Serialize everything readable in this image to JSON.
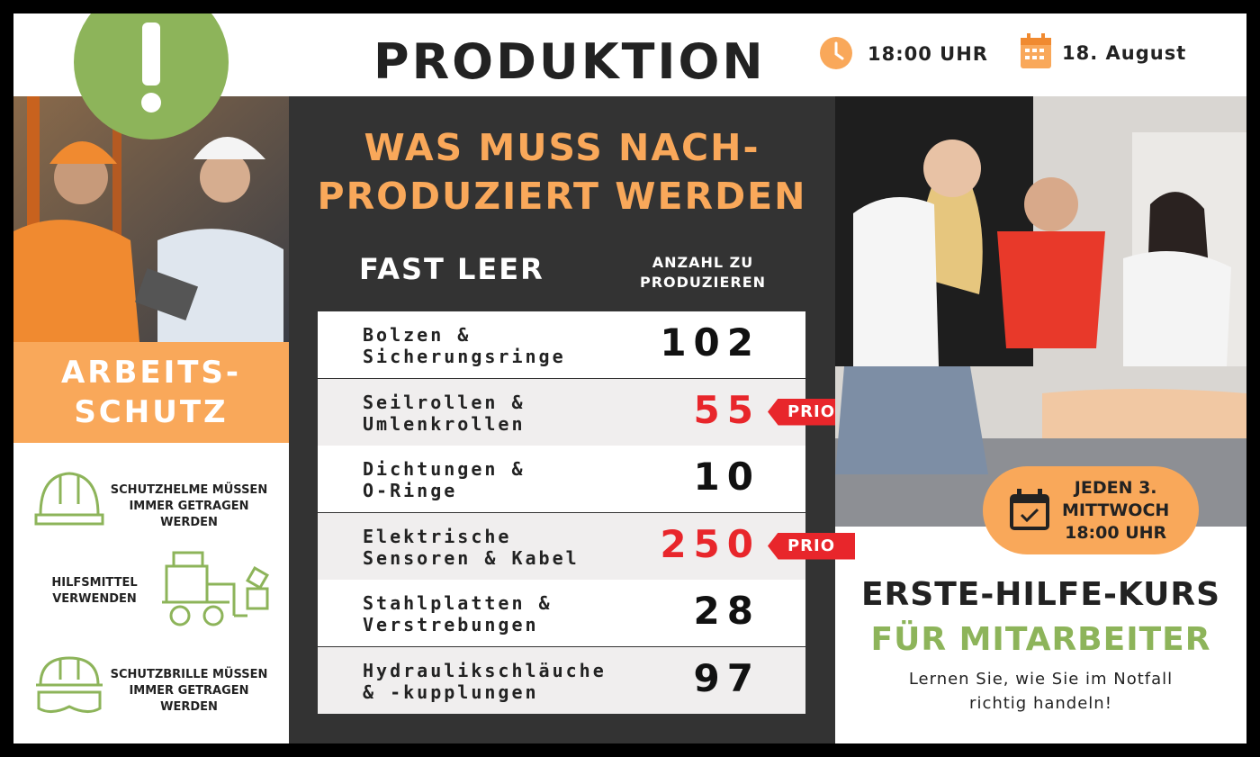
{
  "header": {
    "title": "PRODUKTION",
    "time": "18:00 UHR",
    "date": "18. August"
  },
  "safety": {
    "title_lines": [
      "ARBEITS-",
      "SCHUTZ"
    ],
    "items": [
      {
        "lines": [
          "SCHUTZHELME MÜSSEN",
          "IMMER GETRAGEN",
          "WERDEN"
        ]
      },
      {
        "lines": [
          "HILFSMITTEL",
          "VERWENDEN"
        ]
      },
      {
        "lines": [
          "SCHUTZBRILLE MÜSSEN",
          "IMMER GETRAGEN",
          "WERDEN"
        ]
      }
    ]
  },
  "production": {
    "heading_lines": [
      "WAS MUSS NACH-",
      "PRODUZIERT WERDEN"
    ],
    "col_name": "FAST LEER",
    "col_count_lines": [
      "ANZAHL ZU",
      "PRODUZIEREN"
    ],
    "rows": [
      {
        "lines": [
          "Bolzen &",
          "Sicherungsringe"
        ],
        "count": 102
      },
      {
        "lines": [
          "Seilrollen &",
          "Umlenkrollen"
        ],
        "count": 55,
        "badge": "PRIO"
      },
      {
        "lines": [
          "Dichtungen &",
          "O-Ringe"
        ],
        "count": 10
      },
      {
        "lines": [
          "Elektrische",
          "Sensoren & Kabel"
        ],
        "count": 250,
        "badge": "PRIO"
      },
      {
        "lines": [
          "Stahlplatten &",
          "Verstrebungen"
        ],
        "count": 28
      },
      {
        "lines": [
          "Hydraulikschläuche",
          "& -kupplungen"
        ],
        "count": 97
      }
    ]
  },
  "course": {
    "badge_lines": [
      "JEDEN 3.",
      "MITTWOCH",
      "18:00 UHR"
    ],
    "title": "ERSTE-HILFE-KURS",
    "subtitle": "FÜR MITARBEITER",
    "text_lines": [
      "Lernen Sie, wie Sie im Notfall",
      "richtig handeln!"
    ]
  }
}
